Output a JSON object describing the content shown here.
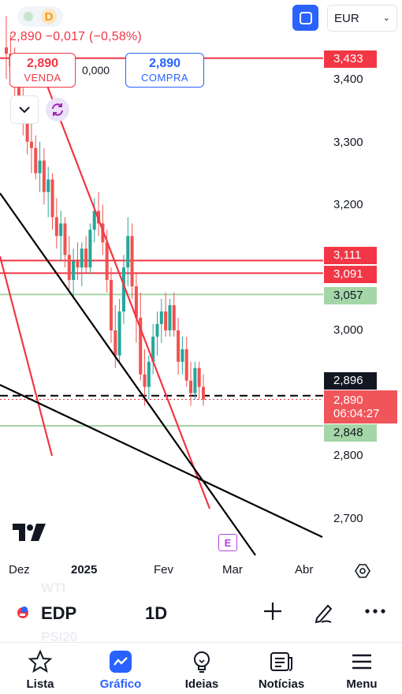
{
  "header": {
    "price_change": "2,890 −0,017 (−0,58%)",
    "sell": {
      "value": "2,890",
      "label": "VENDA"
    },
    "spread": "0,000",
    "buy": {
      "value": "2,890",
      "label": "COMPRA"
    },
    "indicator_letter": "D",
    "currency": "EUR"
  },
  "price_scale": {
    "ticks": [
      "3,400",
      "3,300",
      "3,200",
      "3,000",
      "2,800",
      "2,700"
    ],
    "labels": {
      "l3433": "3,433",
      "l3111": "3,111",
      "l3091": "3,091",
      "l3057": "3,057",
      "l2896": "2,896",
      "current_price": "2,890",
      "countdown": "06:04:27",
      "l2848": "2,848"
    }
  },
  "time_axis": {
    "dez": "Dez",
    "year": "2025",
    "fev": "Fev",
    "mar": "Mar",
    "abr": "Abr"
  },
  "event_badge": "E",
  "symbol_bar": {
    "symbol": "EDP",
    "timeframe": "1D",
    "ghost_above": "WTI",
    "ghost_below": "PSI20"
  },
  "nav": {
    "list": "Lista",
    "chart": "Gráfico",
    "ideas": "Ideias",
    "news": "Notícias",
    "menu": "Menu"
  },
  "colors": {
    "up": "#ef5350",
    "down": "#26a69a",
    "accent": "#2962ff",
    "red_line": "#f23645",
    "green_line": "#a5d6a7"
  },
  "chart_data": {
    "type": "candlestick",
    "y_scale": [
      2.65,
      3.5
    ],
    "horizontal_levels": [
      {
        "value": 3.433,
        "color": "#f23645"
      },
      {
        "value": 3.111,
        "color": "#f23645"
      },
      {
        "value": 3.091,
        "color": "#f23645"
      },
      {
        "value": 3.057,
        "color": "#a5d6a7"
      },
      {
        "value": 2.848,
        "color": "#a5d6a7"
      },
      {
        "value": 2.896,
        "color": "#000000",
        "style": "dashed"
      },
      {
        "value": 2.89,
        "color": "#f23645",
        "style": "dotted"
      }
    ],
    "candles": [
      {
        "o": 3.45,
        "h": 3.5,
        "l": 3.4,
        "c": 3.44
      },
      {
        "o": 3.44,
        "h": 3.47,
        "l": 3.39,
        "c": 3.42
      },
      {
        "o": 3.42,
        "h": 3.45,
        "l": 3.37,
        "c": 3.41
      },
      {
        "o": 3.41,
        "h": 3.43,
        "l": 3.34,
        "c": 3.36
      },
      {
        "o": 3.36,
        "h": 3.39,
        "l": 3.31,
        "c": 3.34
      },
      {
        "o": 3.34,
        "h": 3.36,
        "l": 3.28,
        "c": 3.3
      },
      {
        "o": 3.3,
        "h": 3.33,
        "l": 3.25,
        "c": 3.29
      },
      {
        "o": 3.29,
        "h": 3.31,
        "l": 3.24,
        "c": 3.25
      },
      {
        "o": 3.25,
        "h": 3.3,
        "l": 3.22,
        "c": 3.27
      },
      {
        "o": 3.27,
        "h": 3.29,
        "l": 3.2,
        "c": 3.22
      },
      {
        "o": 3.22,
        "h": 3.26,
        "l": 3.18,
        "c": 3.24
      },
      {
        "o": 3.24,
        "h": 3.25,
        "l": 3.16,
        "c": 3.18
      },
      {
        "o": 3.18,
        "h": 3.21,
        "l": 3.13,
        "c": 3.15
      },
      {
        "o": 3.15,
        "h": 3.19,
        "l": 3.11,
        "c": 3.17
      },
      {
        "o": 3.17,
        "h": 3.18,
        "l": 3.1,
        "c": 3.12
      },
      {
        "o": 3.12,
        "h": 3.15,
        "l": 3.06,
        "c": 3.08
      },
      {
        "o": 3.08,
        "h": 3.13,
        "l": 3.05,
        "c": 3.11
      },
      {
        "o": 3.11,
        "h": 3.14,
        "l": 3.08,
        "c": 3.1
      },
      {
        "o": 3.1,
        "h": 3.14,
        "l": 3.07,
        "c": 3.13
      },
      {
        "o": 3.13,
        "h": 3.15,
        "l": 3.09,
        "c": 3.1
      },
      {
        "o": 3.1,
        "h": 3.17,
        "l": 3.09,
        "c": 3.16
      },
      {
        "o": 3.16,
        "h": 3.21,
        "l": 3.14,
        "c": 3.19
      },
      {
        "o": 3.19,
        "h": 3.22,
        "l": 3.15,
        "c": 3.17
      },
      {
        "o": 3.17,
        "h": 3.2,
        "l": 3.12,
        "c": 3.14
      },
      {
        "o": 3.14,
        "h": 3.16,
        "l": 3.06,
        "c": 3.08
      },
      {
        "o": 3.08,
        "h": 3.1,
        "l": 2.98,
        "c": 3.0
      },
      {
        "o": 3.0,
        "h": 3.04,
        "l": 2.94,
        "c": 2.96
      },
      {
        "o": 2.96,
        "h": 3.05,
        "l": 2.95,
        "c": 3.03
      },
      {
        "o": 3.03,
        "h": 3.12,
        "l": 3.01,
        "c": 3.1
      },
      {
        "o": 3.1,
        "h": 3.18,
        "l": 3.07,
        "c": 3.15
      },
      {
        "o": 3.15,
        "h": 3.17,
        "l": 3.05,
        "c": 3.07
      },
      {
        "o": 3.07,
        "h": 3.09,
        "l": 2.98,
        "c": 3.02
      },
      {
        "o": 3.02,
        "h": 3.06,
        "l": 2.92,
        "c": 2.93
      },
      {
        "o": 2.93,
        "h": 2.97,
        "l": 2.88,
        "c": 2.91
      },
      {
        "o": 2.91,
        "h": 2.96,
        "l": 2.89,
        "c": 2.95
      },
      {
        "o": 2.95,
        "h": 3.01,
        "l": 2.93,
        "c": 2.99
      },
      {
        "o": 2.99,
        "h": 3.03,
        "l": 2.96,
        "c": 3.01
      },
      {
        "o": 3.01,
        "h": 3.05,
        "l": 2.98,
        "c": 3.03
      },
      {
        "o": 3.03,
        "h": 3.06,
        "l": 2.99,
        "c": 3.0
      },
      {
        "o": 3.0,
        "h": 3.05,
        "l": 2.99,
        "c": 3.04
      },
      {
        "o": 3.04,
        "h": 3.06,
        "l": 2.99,
        "c": 3.0
      },
      {
        "o": 3.0,
        "h": 3.02,
        "l": 2.93,
        "c": 2.95
      },
      {
        "o": 2.95,
        "h": 2.99,
        "l": 2.93,
        "c": 2.97
      },
      {
        "o": 2.97,
        "h": 2.99,
        "l": 2.91,
        "c": 2.92
      },
      {
        "o": 2.92,
        "h": 2.95,
        "l": 2.88,
        "c": 2.9
      },
      {
        "o": 2.9,
        "h": 2.95,
        "l": 2.89,
        "c": 2.94
      },
      {
        "o": 2.94,
        "h": 2.95,
        "l": 2.89,
        "c": 2.91
      },
      {
        "o": 2.91,
        "h": 2.93,
        "l": 2.88,
        "c": 2.89
      }
    ]
  }
}
